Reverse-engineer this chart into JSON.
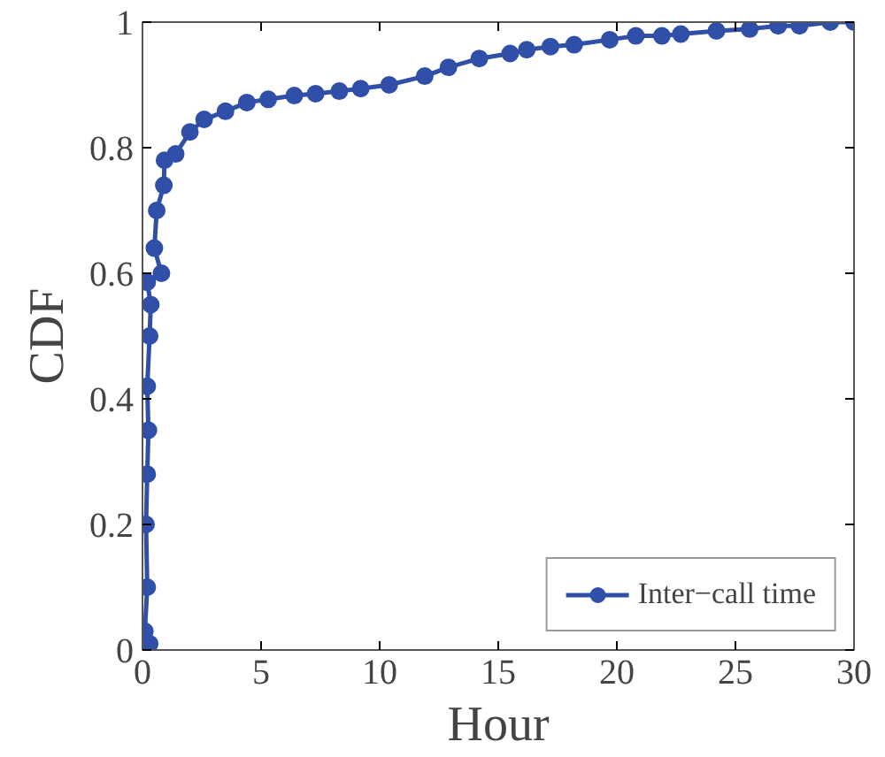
{
  "chart_data": {
    "type": "line",
    "xlabel": "Hour",
    "ylabel": "CDF",
    "xlim": [
      0,
      30
    ],
    "xticks": [
      0,
      5,
      10,
      15,
      20,
      25,
      30
    ],
    "ylim": [
      0,
      1
    ],
    "yticks": [
      0,
      0.2,
      0.4,
      0.6,
      0.8,
      1
    ],
    "x": [
      0.3,
      0.1,
      0.2,
      0.15,
      0.2,
      0.25,
      0.2,
      0.3,
      0.35,
      0.2,
      0.8,
      0.5,
      0.6,
      0.9,
      0.93,
      1.4,
      2.0,
      2.6,
      3.5,
      4.4,
      5.3,
      6.4,
      7.3,
      8.3,
      9.2,
      10.4,
      11.9,
      12.9,
      14.2,
      15.5,
      16.2,
      17.2,
      18.2,
      19.7,
      20.8,
      21.9,
      22.7,
      24.2,
      25.6,
      26.8,
      27.7,
      29.0,
      30
    ],
    "series": [
      {
        "name": "Inter−call time",
        "color": "#2f4fa8",
        "values": [
          0.01,
          0.03,
          0.1,
          0.2,
          0.28,
          0.35,
          0.42,
          0.5,
          0.55,
          0.586,
          0.6,
          0.64,
          0.7,
          0.74,
          0.78,
          0.79,
          0.825,
          0.845,
          0.858,
          0.872,
          0.877,
          0.883,
          0.886,
          0.89,
          0.894,
          0.9,
          0.914,
          0.928,
          0.942,
          0.95,
          0.956,
          0.961,
          0.964,
          0.972,
          0.978,
          0.978,
          0.981,
          0.986,
          0.989,
          0.994,
          0.994,
          1.0,
          1.0
        ]
      }
    ],
    "marker": "circle",
    "line_style": "solid",
    "grid": false,
    "legend": "bottom right"
  }
}
